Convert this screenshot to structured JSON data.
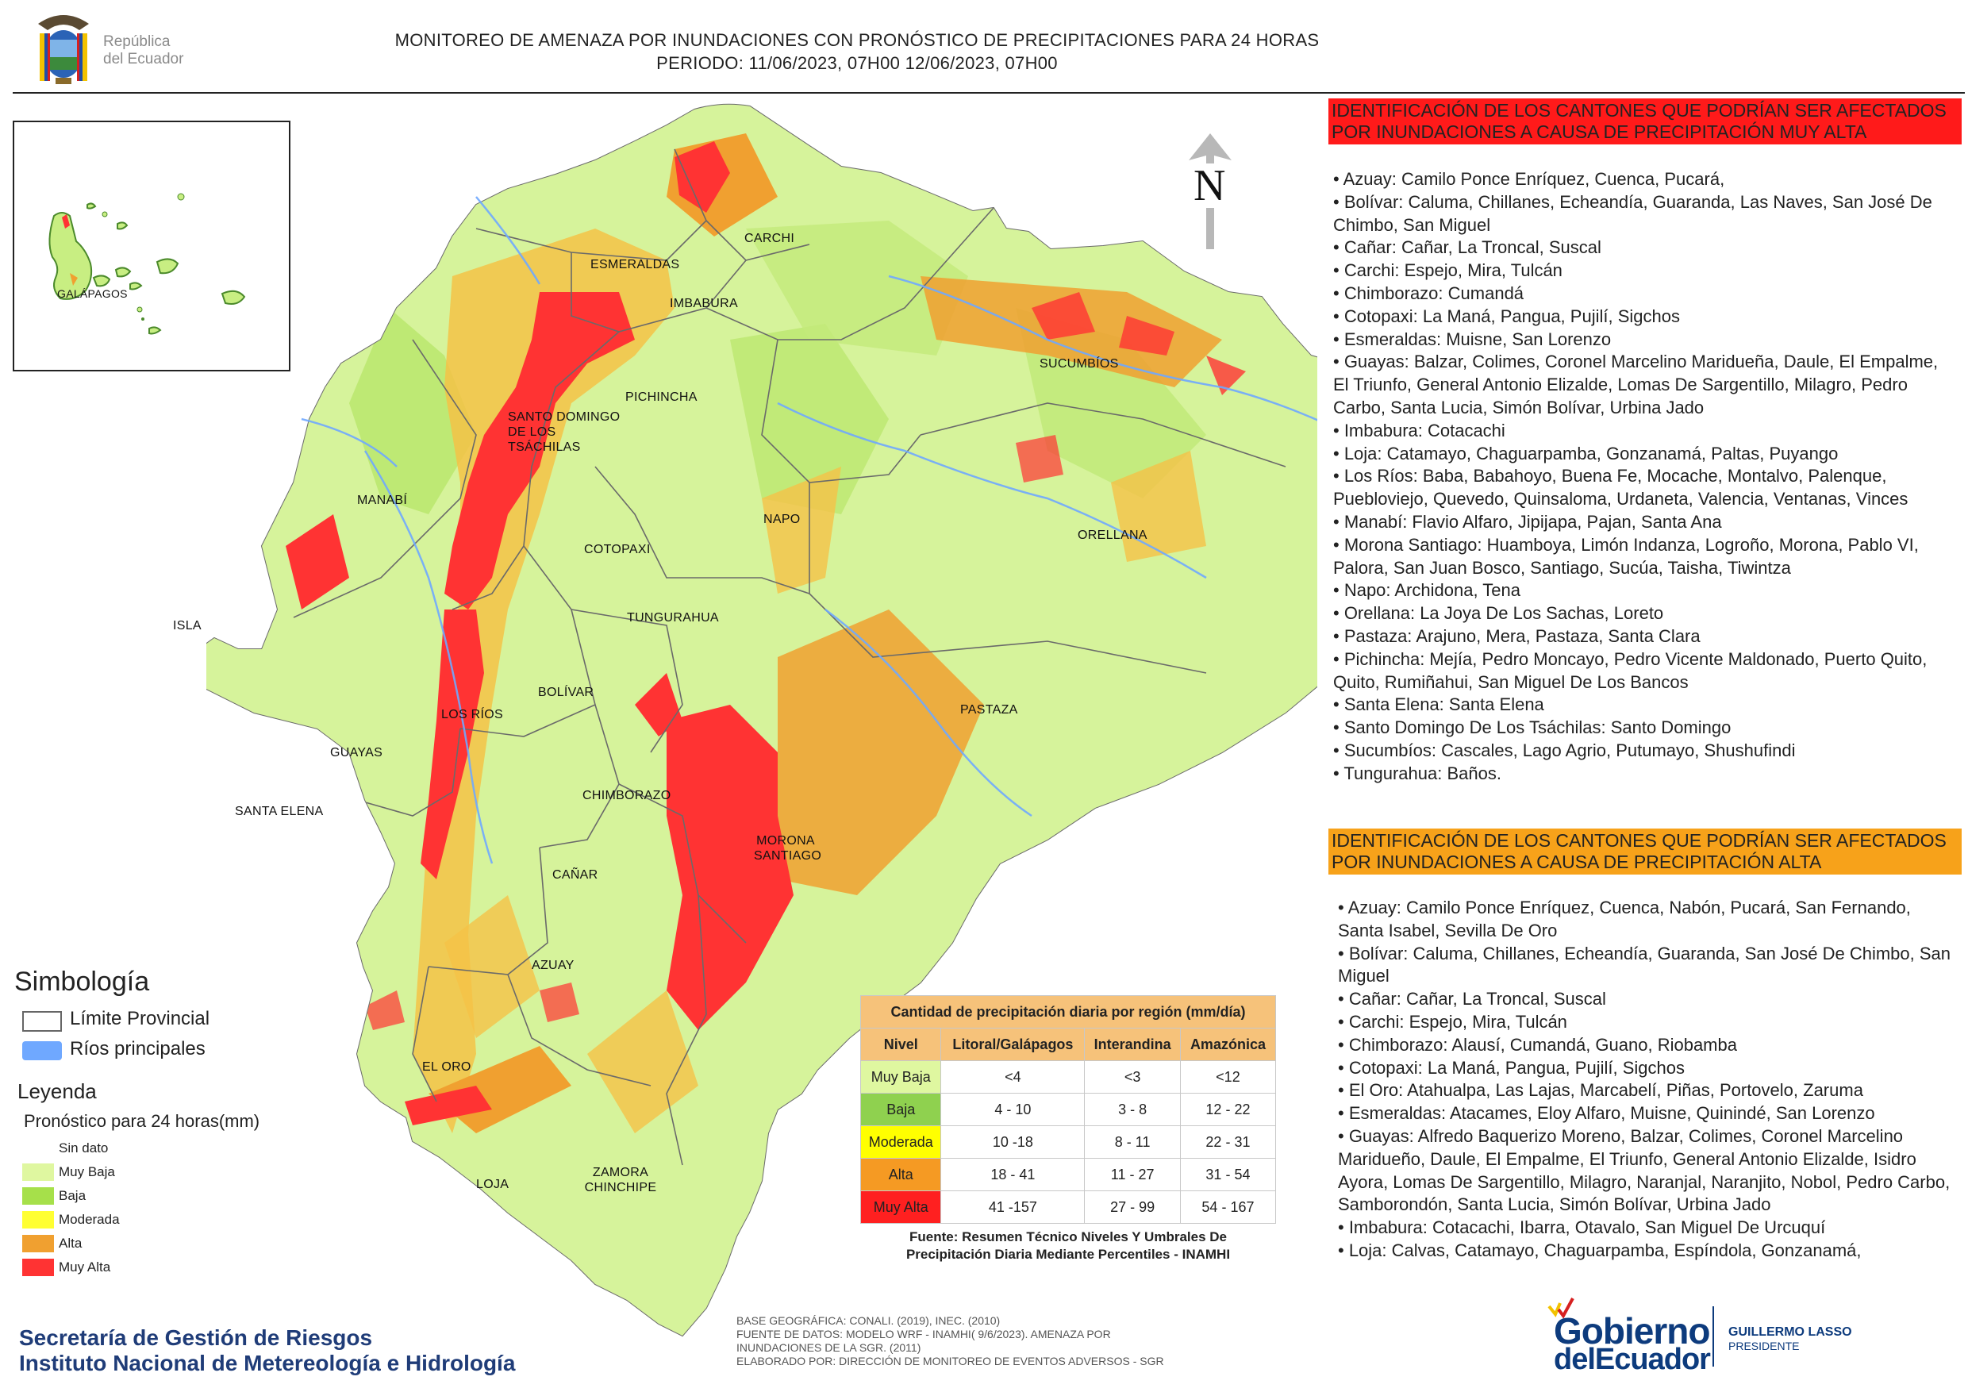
{
  "header": {
    "logo_text_line1": "República",
    "logo_text_line2": "del Ecuador",
    "title_line1": "MONITOREO DE AMENAZA POR INUNDACIONES  CON PRONÓSTICO DE  PRECIPITACIONES PARA 24 HORAS",
    "title_line2": "PERIODO: 11/06/2023, 07H00 12/06/2023, 07H00"
  },
  "map": {
    "inset_label": "GALÁPAGOS",
    "isla_label": "ISLA",
    "north_label": "N",
    "province_labels": [
      {
        "name": "ESMERALDAS"
      },
      {
        "name": "CARCHI"
      },
      {
        "name": "IMBABURA"
      },
      {
        "name": "SUCUMBÍOS"
      },
      {
        "name": "PICHINCHA"
      },
      {
        "name": "SANTO DOMINGO DE LOS TSÁCHILAS"
      },
      {
        "name": "MANABÍ"
      },
      {
        "name": "NAPO"
      },
      {
        "name": "ORELLANA"
      },
      {
        "name": "COTOPAXI"
      },
      {
        "name": "TUNGURAHUA"
      },
      {
        "name": "BOLÍVAR"
      },
      {
        "name": "LOS RÍOS"
      },
      {
        "name": "GUAYAS"
      },
      {
        "name": "PASTAZA"
      },
      {
        "name": "CHIMBORAZO"
      },
      {
        "name": "SANTA ELENA"
      },
      {
        "name": "MORONA SANTIAGO"
      },
      {
        "name": "CAÑAR"
      },
      {
        "name": "AZUAY"
      },
      {
        "name": "EL ORO"
      },
      {
        "name": "LOJA"
      },
      {
        "name": "ZAMORA CHINCHIPE"
      }
    ]
  },
  "legend": {
    "simbologia_title": "Simbología",
    "limite_label": "Límite Provincial",
    "rios_label": "Ríos principales",
    "leyenda_title": "Leyenda",
    "pronostico_title": "Pronóstico para 24 horas(mm)",
    "categories": [
      {
        "label": "Sin dato",
        "color": "#ffffff"
      },
      {
        "label": "Muy Baja",
        "color": "#dff7a0"
      },
      {
        "label": "Baja",
        "color": "#a6e04a"
      },
      {
        "label": "Moderada",
        "color": "#ffff33"
      },
      {
        "label": "Alta",
        "color": "#f0a030"
      },
      {
        "label": "Muy Alta",
        "color": "#ff3333"
      }
    ],
    "colors": {
      "limite_border": "#666666",
      "rios": "#6fa8ff"
    }
  },
  "precip_table": {
    "caption": "Cantidad de precipitación diaria por región (mm/día)",
    "headers": [
      "Nivel",
      "Litoral/Galápagos",
      "Interandina",
      "Amazónica"
    ],
    "rows": [
      {
        "nivel": "Muy Baja",
        "color": "#dff7a0",
        "litoral": "<4",
        "interandina": "<3",
        "amazonica": "<12"
      },
      {
        "nivel": "Baja",
        "color": "#8fd14f",
        "litoral": "4 - 10",
        "interandina": "3 - 8",
        "amazonica": "12 - 22"
      },
      {
        "nivel": "Moderada",
        "color": "#ffff00",
        "litoral": "10 -18",
        "interandina": "8 - 11",
        "amazonica": "22 - 31"
      },
      {
        "nivel": "Alta",
        "color": "#f59a23",
        "litoral": "18 - 41",
        "interandina": "11 - 27",
        "amazonica": "31 - 54"
      },
      {
        "nivel": "Muy Alta",
        "color": "#ff2020",
        "litoral": "41 -157",
        "interandina": "27 - 99",
        "amazonica": "54 - 167"
      }
    ],
    "source_line1": "Fuente: Resumen Técnico Niveles Y Umbrales De",
    "source_line2": "Precipitación Diaria Mediante Percentiles - INAMHI"
  },
  "base_notes": [
    "BASE GEOGRÁFICA: CONALI. (2019), INEC. (2010)",
    "FUENTE DE DATOS: MODELO WRF - INAMHI( 9/6/2023).  AMENAZA POR",
    "INUNDACIONES DE LA SGR. (2011)",
    "ELABORADO POR: DIRECCIÓN DE MONITOREO DE EVENTOS ADVERSOS - SGR"
  ],
  "footer": {
    "org_line1": "Secretaría de Gestión de Riesgos",
    "org_line2": "Instituto Nacional de Metereología e Hidrología",
    "gob_line1": "Gobierno",
    "gob_line2": "delEcuador",
    "president_line1": "GUILLERMO LASSO",
    "president_line2": "PRESIDENTE"
  },
  "panel_muy_alta": {
    "title": "IDENTIFICACIÓN DE LOS CANTONES QUE PODRÍAN SER AFECTADOS POR INUNDACIONES  A CAUSA DE PRECIPITACIÓN MUY ALTA",
    "color": "#ff1a1a",
    "items": [
      "• Azuay: Camilo Ponce Enríquez, Cuenca, Pucará,",
      "• Bolívar: Caluma, Chillanes, Echeandía, Guaranda, Las Naves, San José De Chimbo, San Miguel",
      "• Cañar: Cañar, La Troncal, Suscal",
      "• Carchi: Espejo, Mira, Tulcán",
      "• Chimborazo: Cumandá",
      "• Cotopaxi: La Maná, Pangua, Pujilí, Sigchos",
      "• Esmeraldas: Muisne, San Lorenzo",
      "• Guayas: Balzar, Colimes, Coronel Marcelino Maridueña, Daule, El Empalme, El Triunfo, General Antonio Elizalde, Lomas De Sargentillo, Milagro, Pedro Carbo, Santa Lucia, Simón Bolívar, Urbina Jado",
      "• Imbabura: Cotacachi",
      "• Loja: Catamayo, Chaguarpamba, Gonzanamá, Paltas, Puyango",
      "• Los Ríos: Baba, Babahoyo, Buena Fe, Mocache, Montalvo, Palenque, Puebloviejo, Quevedo, Quinsaloma, Urdaneta, Valencia, Ventanas, Vinces",
      "• Manabí: Flavio Alfaro, Jipijapa, Pajan, Santa Ana",
      "• Morona Santiago: Huamboya, Limón Indanza, Logroño, Morona, Pablo VI, Palora, San Juan Bosco, Santiago, Sucúa, Taisha, Tiwintza",
      "• Napo: Archidona, Tena",
      "• Orellana: La Joya De Los Sachas, Loreto",
      "• Pastaza: Arajuno, Mera, Pastaza, Santa Clara",
      "• Pichincha: Mejía, Pedro Moncayo, Pedro Vicente Maldonado, Puerto Quito, Quito, Rumiñahui, San Miguel De Los Bancos",
      "• Santa Elena: Santa Elena",
      "• Santo Domingo De Los Tsáchilas: Santo Domingo",
      "• Sucumbíos: Cascales, Lago Agrio, Putumayo, Shushufindi",
      "• Tungurahua: Baños."
    ]
  },
  "panel_alta": {
    "title": "IDENTIFICACIÓN DE LOS CANTONES QUE  PODRÍAN SER AFECTADOS POR INUNDACIONES  A CAUSA DE PRECIPITACIÓN ALTA",
    "color": "#f7a21a",
    "items": [
      "• Azuay: Camilo Ponce Enríquez, Cuenca, Nabón, Pucará, San Fernando, Santa Isabel, Sevilla De Oro",
      "• Bolívar: Caluma, Chillanes, Echeandía, Guaranda, San José De Chimbo, San Miguel",
      "• Cañar: Cañar, La Troncal, Suscal",
      "• Carchi: Espejo, Mira, Tulcán",
      "• Chimborazo: Alausí, Cumandá, Guano, Riobamba",
      "• Cotopaxi: La Maná, Pangua, Pujilí, Sigchos",
      "• El Oro: Atahualpa, Las Lajas, Marcabelí, Piñas, Portovelo, Zaruma",
      "• Esmeraldas: Atacames, Eloy Alfaro, Muisne, Quinindé, San Lorenzo",
      "• Guayas: Alfredo Baquerizo Moreno, Balzar, Colimes, Coronel Marcelino Maridueño, Daule, El Empalme, El Triunfo, General Antonio Elizalde, Isidro Ayora, Lomas De Sargentillo, Milagro, Naranjal, Naranjito, Nobol, Pedro Carbo, Samborondón, Santa Lucia, Simón Bolívar, Urbina Jado",
      "• Imbabura: Cotacachi, Ibarra, Otavalo, San Miguel De Urcuquí",
      "• Loja: Calvas, Catamayo, Chaguarpamba, Espíndola, Gonzanamá,"
    ]
  }
}
